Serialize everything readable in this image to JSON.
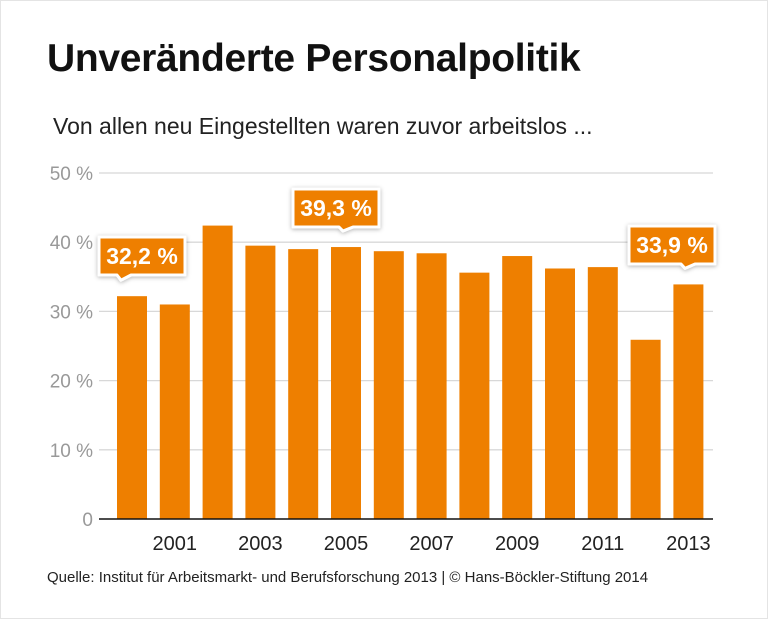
{
  "title": "Unveränderte Personalpolitik",
  "subtitle": "Von allen neu Eingestellten waren zuvor arbeitslos ...",
  "source": "Quelle: Institut für Arbeitsmarkt- und Berufsforschung 2013 | © Hans-Böckler-Stiftung 2014",
  "colors": {
    "bar": "#EE7F00",
    "grid": "#d8d8d8",
    "axis": "#111111"
  },
  "chart_data": {
    "type": "bar",
    "categories": [
      "2000",
      "2001",
      "2002",
      "2003",
      "2004",
      "2005",
      "2006",
      "2007",
      "2008",
      "2009",
      "2010",
      "2011",
      "2012",
      "2013"
    ],
    "values": [
      32.2,
      31.0,
      42.4,
      39.5,
      39.0,
      39.3,
      38.7,
      38.4,
      35.6,
      38.0,
      36.2,
      36.4,
      25.9,
      33.9
    ],
    "x_tick_labels": [
      "2001",
      "2003",
      "2005",
      "2007",
      "2009",
      "2011",
      "2013"
    ],
    "y_tick_labels": [
      "0",
      "10 %",
      "20 %",
      "30 %",
      "40 %",
      "50 %"
    ],
    "ylim": [
      0,
      50
    ],
    "grid": true,
    "annotations": [
      {
        "category": "2000",
        "label": "32,2 %"
      },
      {
        "category": "2005",
        "label": "39,3 %"
      },
      {
        "category": "2013",
        "label": "33,9 %"
      }
    ]
  }
}
